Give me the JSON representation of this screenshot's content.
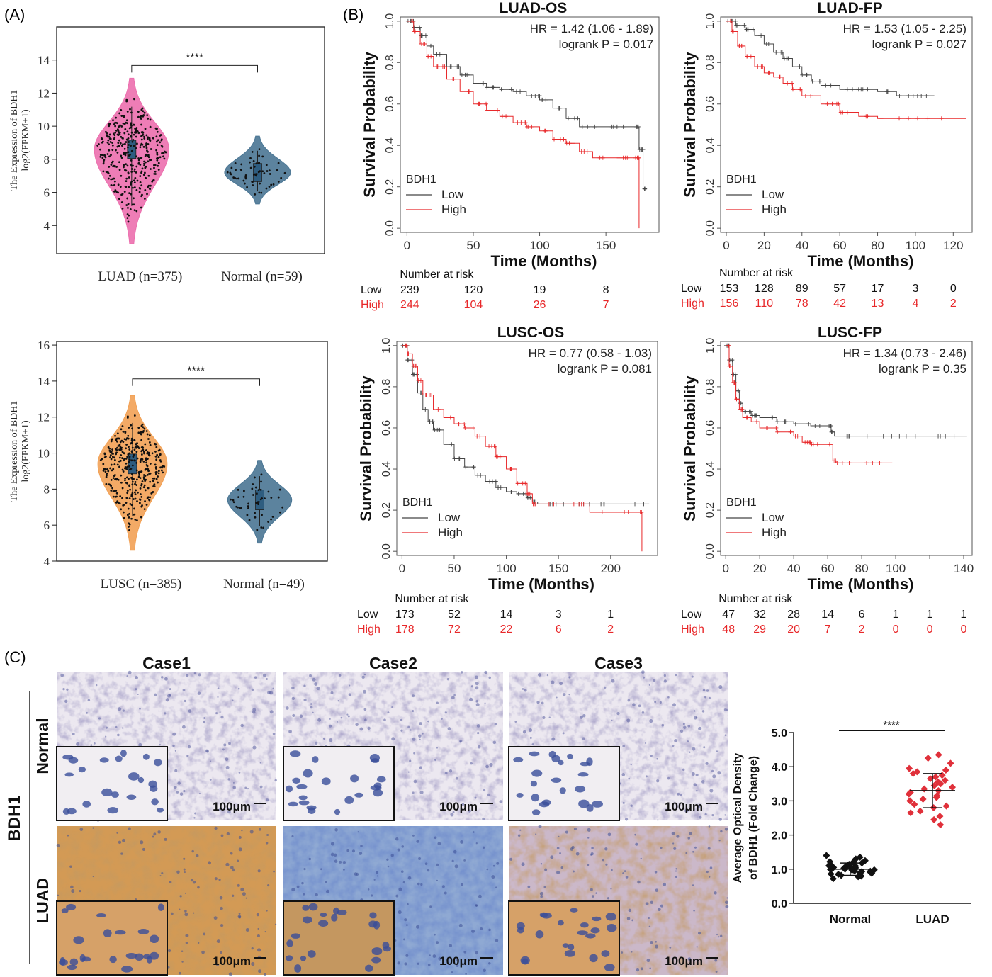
{
  "panel_labels": {
    "a": "(A)",
    "b": "(B)",
    "c": "(C)"
  },
  "colors": {
    "luad_violin": "#ec6fae",
    "lusc_violin": "#f2a155",
    "normal_violin": "#4a7694",
    "km_low": "#444444",
    "km_high": "#e8282a",
    "iod_normal": "#111111",
    "iod_luad": "#e0303a",
    "ihc_normal_bg": "#e9e5ef",
    "ihc_luad_stain": "#c9843c",
    "ihc_nuclei": "#2a4fa0"
  },
  "chart_data": [
    {
      "id": "violin-luad",
      "type": "violin",
      "ylabel": "The Expression of BDH1",
      "ylabel2": "log2(FPKM+1)",
      "yticks": [
        4,
        6,
        8,
        10,
        12,
        14
      ],
      "ylim": [
        2.3,
        16
      ],
      "groups": [
        {
          "label": "LUAD (n=375)",
          "n": 375,
          "median": 8.6,
          "range": [
            2.9,
            12.9
          ],
          "width": 0.85,
          "color": "#ec6fae"
        },
        {
          "label": "Normal (n=59)",
          "n": 59,
          "median": 7.2,
          "range": [
            5.3,
            9.4
          ],
          "width": 0.75,
          "color": "#4a7694"
        }
      ],
      "significance": "****"
    },
    {
      "id": "violin-lusc",
      "type": "violin",
      "ylabel": "The Expression of BDH1",
      "ylabel2": "log2(FPKM+1)",
      "yticks": [
        4,
        6,
        8,
        10,
        12,
        14,
        16
      ],
      "ylim": [
        4,
        16.2
      ],
      "groups": [
        {
          "label": "LUSC (n=385)",
          "n": 385,
          "median": 9.4,
          "range": [
            4.6,
            13.2
          ],
          "width": 0.78,
          "color": "#f2a155"
        },
        {
          "label": "Normal (n=49)",
          "n": 49,
          "median": 7.4,
          "range": [
            5.0,
            9.6
          ],
          "width": 0.72,
          "color": "#4a7694"
        }
      ],
      "significance": "****"
    },
    {
      "id": "km-luad-os",
      "type": "line",
      "title": "LUAD-OS",
      "xlabel": "Time (Months)",
      "ylabel": "Survival Probability",
      "xticks": [
        0,
        50,
        100,
        150
      ],
      "xlim": [
        -5,
        190
      ],
      "yticks": [
        "0.0",
        "0.2",
        "0.4",
        "0.6",
        "0.8",
        "1.0"
      ],
      "ylim": [
        -0.02,
        1.02
      ],
      "hr_text": "HR = 1.42 (1.06 - 1.89)",
      "p_text": "logrank P = 0.017",
      "legend_title": "BDH1",
      "series": [
        {
          "name": "Low",
          "color": "#444444",
          "x": [
            0,
            5,
            10,
            15,
            20,
            30,
            40,
            50,
            60,
            70,
            80,
            90,
            100,
            110,
            120,
            130,
            150,
            170,
            175,
            178,
            180
          ],
          "y": [
            1.0,
            0.97,
            0.93,
            0.88,
            0.84,
            0.78,
            0.74,
            0.7,
            0.68,
            0.67,
            0.66,
            0.64,
            0.62,
            0.58,
            0.53,
            0.49,
            0.49,
            0.49,
            0.38,
            0.19,
            0.19
          ]
        },
        {
          "name": "High",
          "color": "#e8282a",
          "x": [
            0,
            5,
            10,
            15,
            20,
            30,
            40,
            50,
            60,
            70,
            80,
            90,
            100,
            110,
            120,
            130,
            140,
            150,
            170,
            174,
            175
          ],
          "y": [
            1.0,
            0.95,
            0.89,
            0.83,
            0.78,
            0.72,
            0.66,
            0.6,
            0.57,
            0.54,
            0.51,
            0.49,
            0.47,
            0.43,
            0.41,
            0.37,
            0.34,
            0.34,
            0.34,
            0.34,
            0.0
          ]
        }
      ],
      "risk": {
        "heading": "Number at risk",
        "low_label": "Low",
        "high_label": "High",
        "x": [
          0,
          50,
          100,
          150
        ],
        "low": [
          "239",
          "120",
          "19",
          "8"
        ],
        "high": [
          "244",
          "104",
          "26",
          "7"
        ]
      }
    },
    {
      "id": "km-luad-fp",
      "type": "line",
      "title": "LUAD-FP",
      "xlabel": "Time (Months)",
      "ylabel": "Survival Probability",
      "xticks": [
        0,
        20,
        40,
        60,
        80,
        100,
        120
      ],
      "xlim": [
        -3,
        130
      ],
      "yticks": [
        "0.0",
        "0.2",
        "0.4",
        "0.6",
        "0.8",
        "1.0"
      ],
      "ylim": [
        -0.02,
        1.02
      ],
      "hr_text": "HR = 1.53 (1.05 - 2.25)",
      "p_text": "logrank P = 0.027",
      "legend_title": "BDH1",
      "series": [
        {
          "name": "Low",
          "color": "#444444",
          "x": [
            0,
            5,
            10,
            15,
            20,
            25,
            30,
            35,
            40,
            45,
            50,
            60,
            70,
            80,
            90,
            100,
            110
          ],
          "y": [
            1.0,
            0.98,
            0.96,
            0.93,
            0.89,
            0.85,
            0.82,
            0.78,
            0.74,
            0.71,
            0.69,
            0.67,
            0.67,
            0.66,
            0.64,
            0.64,
            0.64
          ]
        },
        {
          "name": "High",
          "color": "#e8282a",
          "x": [
            0,
            3,
            6,
            10,
            15,
            20,
            25,
            30,
            35,
            40,
            50,
            60,
            70,
            80,
            100,
            127
          ],
          "y": [
            1.0,
            0.95,
            0.88,
            0.83,
            0.78,
            0.75,
            0.73,
            0.7,
            0.67,
            0.64,
            0.6,
            0.56,
            0.54,
            0.53,
            0.53,
            0.53
          ]
        }
      ],
      "risk": {
        "heading": "Number at risk",
        "low_label": "Low",
        "high_label": "High",
        "x": [
          0,
          20,
          40,
          60,
          80,
          100,
          120
        ],
        "low": [
          "153",
          "128",
          "89",
          "57",
          "17",
          "3",
          "0"
        ],
        "high": [
          "156",
          "110",
          "78",
          "42",
          "13",
          "4",
          "2"
        ]
      }
    },
    {
      "id": "km-lusc-os",
      "type": "line",
      "title": "LUSC-OS",
      "xlabel": "Time (Months)",
      "ylabel": "Survival Probability",
      "xticks": [
        0,
        50,
        100,
        150,
        200
      ],
      "xlim": [
        -5,
        245
      ],
      "yticks": [
        "0.0",
        "0.2",
        "0.4",
        "0.6",
        "0.8",
        "1.0"
      ],
      "ylim": [
        -0.02,
        1.02
      ],
      "hr_text": "HR = 0.77 (0.58 - 1.03)",
      "p_text": "logrank P = 0.081",
      "legend_title": "BDH1",
      "series": [
        {
          "name": "Low",
          "color": "#444444",
          "x": [
            0,
            5,
            10,
            15,
            20,
            25,
            30,
            40,
            50,
            60,
            70,
            80,
            90,
            100,
            110,
            120,
            125,
            130,
            150,
            180,
            200,
            237
          ],
          "y": [
            1.0,
            0.93,
            0.86,
            0.77,
            0.69,
            0.63,
            0.59,
            0.52,
            0.45,
            0.41,
            0.37,
            0.34,
            0.31,
            0.29,
            0.28,
            0.26,
            0.24,
            0.23,
            0.23,
            0.23,
            0.23,
            0.23
          ]
        },
        {
          "name": "High",
          "color": "#e8282a",
          "x": [
            0,
            5,
            10,
            15,
            20,
            30,
            40,
            50,
            60,
            70,
            80,
            90,
            100,
            110,
            120,
            125,
            130,
            150,
            180,
            200,
            228,
            230
          ],
          "y": [
            1.0,
            0.96,
            0.9,
            0.83,
            0.76,
            0.69,
            0.65,
            0.62,
            0.6,
            0.56,
            0.51,
            0.46,
            0.4,
            0.33,
            0.28,
            0.23,
            0.23,
            0.23,
            0.19,
            0.19,
            0.19,
            0.0
          ]
        }
      ],
      "risk": {
        "heading": "Number at risk",
        "low_label": "Low",
        "high_label": "High",
        "x": [
          0,
          50,
          100,
          150,
          200
        ],
        "low": [
          "173",
          "52",
          "14",
          "3",
          "1"
        ],
        "high": [
          "178",
          "72",
          "22",
          "6",
          "2"
        ]
      }
    },
    {
      "id": "km-lusc-fp",
      "type": "line",
      "title": "LUSC-FP",
      "xlabel": "Time (Months)",
      "ylabel": "Survival Probability",
      "xticks": [
        0,
        20,
        40,
        60,
        80,
        100,
        140
      ],
      "xtick_positions": [
        0,
        20,
        40,
        60,
        80,
        100,
        120,
        140
      ],
      "xlim": [
        -3,
        145
      ],
      "yticks": [
        "0.0",
        "0.2",
        "0.4",
        "0.6",
        "0.8",
        "1.0"
      ],
      "ylim": [
        -0.02,
        1.02
      ],
      "hr_text": "HR = 1.34 (0.73 - 2.46)",
      "p_text": "logrank P = 0.35",
      "legend_title": "BDH1",
      "series": [
        {
          "name": "Low",
          "color": "#444444",
          "x": [
            0,
            2,
            4,
            6,
            8,
            10,
            15,
            20,
            30,
            40,
            50,
            60,
            62,
            64,
            80,
            100,
            120,
            142
          ],
          "y": [
            1.0,
            0.93,
            0.86,
            0.78,
            0.72,
            0.68,
            0.66,
            0.65,
            0.63,
            0.62,
            0.61,
            0.61,
            0.58,
            0.56,
            0.56,
            0.56,
            0.56,
            0.56
          ]
        },
        {
          "name": "High",
          "color": "#e8282a",
          "x": [
            0,
            2,
            4,
            6,
            8,
            10,
            15,
            20,
            30,
            40,
            45,
            50,
            60,
            63,
            65,
            80,
            98
          ],
          "y": [
            1.0,
            0.9,
            0.82,
            0.74,
            0.69,
            0.65,
            0.63,
            0.6,
            0.58,
            0.56,
            0.53,
            0.52,
            0.52,
            0.44,
            0.43,
            0.43,
            0.43
          ]
        }
      ],
      "risk": {
        "heading": "Number at risk",
        "low_label": "Low",
        "high_label": "High",
        "x": [
          0,
          20,
          40,
          60,
          80,
          100,
          120,
          140
        ],
        "low": [
          "47",
          "32",
          "28",
          "14",
          "6",
          "1",
          "1",
          "1"
        ],
        "high": [
          "48",
          "29",
          "20",
          "7",
          "2",
          "0",
          "0",
          "0"
        ]
      }
    },
    {
      "id": "iod-scatter",
      "type": "scatter",
      "ylabel": "Average Optical Density",
      "ylabel2": "of BDH1 (Fold Change)",
      "yticks": [
        "0.0",
        "1.0",
        "2.0",
        "3.0",
        "4.0",
        "5.0"
      ],
      "ylim": [
        0,
        5
      ],
      "categories": [
        "Normal",
        "LUAD"
      ],
      "significance": "****",
      "series": [
        {
          "name": "Normal",
          "color": "#111111",
          "mean": 1.0,
          "sd": 0.18,
          "values": [
            0.72,
            0.78,
            0.82,
            0.85,
            0.88,
            0.9,
            0.92,
            0.94,
            0.95,
            0.97,
            0.98,
            1.0,
            1.0,
            1.01,
            1.02,
            1.03,
            1.05,
            1.06,
            1.08,
            1.1,
            1.12,
            1.15,
            1.18,
            1.22,
            1.25,
            1.3,
            1.35,
            1.4,
            0.86,
            0.93,
            0.99,
            1.04,
            1.09,
            1.14,
            1.2,
            0.8
          ]
        },
        {
          "name": "LUAD",
          "color": "#e0303a",
          "mean": 3.3,
          "sd": 0.5,
          "values": [
            2.3,
            2.45,
            2.55,
            2.65,
            2.7,
            2.8,
            2.85,
            2.9,
            3.0,
            3.05,
            3.1,
            3.15,
            3.2,
            3.25,
            3.3,
            3.35,
            3.4,
            3.45,
            3.5,
            3.55,
            3.6,
            3.65,
            3.7,
            3.75,
            3.8,
            3.85,
            3.9,
            3.95,
            4.1,
            4.25,
            4.35
          ]
        }
      ]
    }
  ],
  "ihc": {
    "row_group_label": "BDH1",
    "rows": [
      "Normal",
      "LUAD"
    ],
    "cases": [
      "Case1",
      "Case2",
      "Case3"
    ],
    "scale_bar": "100μm"
  }
}
